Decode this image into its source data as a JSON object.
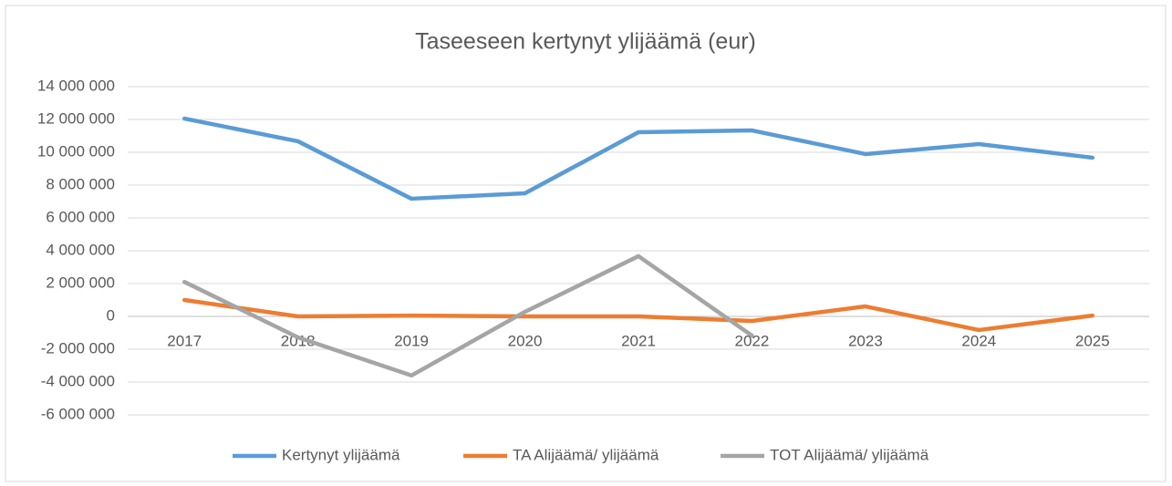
{
  "chart_data": {
    "type": "line",
    "title": "Taseeseen kertynyt ylijäämä (eur)",
    "categories": [
      "2017",
      "2018",
      "2019",
      "2020",
      "2021",
      "2022",
      "2023",
      "2024",
      "2025"
    ],
    "series": [
      {
        "name": "Kertynyt ylijäämä",
        "color": "#5b9bd5",
        "values": [
          12050000,
          10670000,
          7170000,
          7500000,
          11220000,
          11330000,
          9890000,
          10500000,
          9670000
        ]
      },
      {
        "name": "TA Alijäämä/ ylijäämä",
        "color": "#ed7d31",
        "values": [
          1000000,
          0,
          50000,
          0,
          0,
          -280000,
          610000,
          -830000,
          50000
        ]
      },
      {
        "name": "TOT Alijäämä/ ylijäämä",
        "color": "#a5a5a5",
        "values": [
          2100000,
          -1280000,
          -3600000,
          280000,
          3670000,
          -1170000,
          null,
          null,
          null
        ]
      }
    ],
    "ylim": [
      -6000000,
      14000000
    ],
    "yticks": [
      {
        "value": -6000000,
        "label": "-6 000 000"
      },
      {
        "value": -4000000,
        "label": "-4 000 000"
      },
      {
        "value": -2000000,
        "label": "-2 000 000"
      },
      0,
      {
        "value": 2000000,
        "label": "2 000 000"
      },
      {
        "value": 4000000,
        "label": "4 000 000"
      },
      {
        "value": 6000000,
        "label": "6 000 000"
      },
      {
        "value": 8000000,
        "label": "8 000 000"
      },
      {
        "value": 10000000,
        "label": "10 000 000"
      },
      {
        "value": 12000000,
        "label": "12 000 000"
      },
      {
        "value": 14000000,
        "label": "14 000 000"
      }
    ],
    "grid": true,
    "legend": "bottom"
  }
}
